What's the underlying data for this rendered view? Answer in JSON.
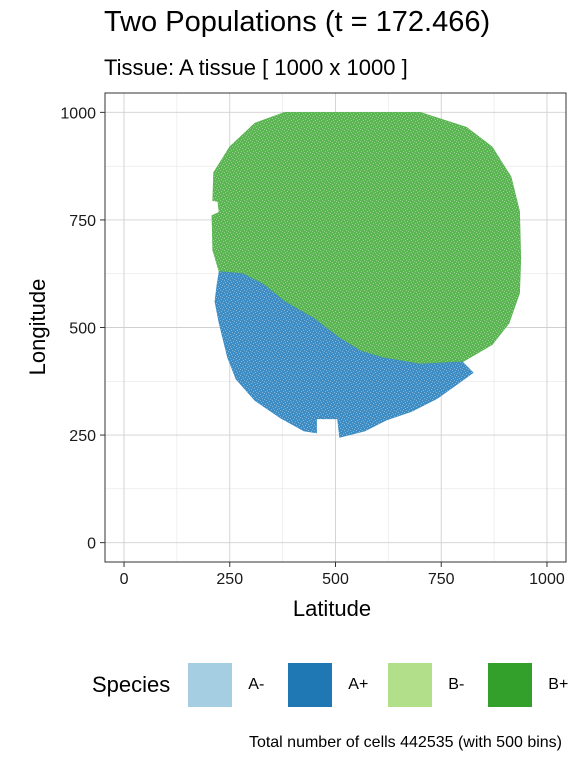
{
  "chart_data": {
    "type": "heatmap",
    "title": "Two Populations (t = 172.466)",
    "subtitle": "Tissue: A tissue [ 1000 x 1000 ]",
    "xlabel": "Latitude",
    "ylabel": "Longitude",
    "xlim": [
      -45,
      1045
    ],
    "ylim": [
      -45,
      1045
    ],
    "xticks": [
      0,
      250,
      500,
      750,
      1000
    ],
    "yticks": [
      0,
      250,
      500,
      750,
      1000
    ],
    "grid": true,
    "legend": {
      "title": "Species",
      "placement": "bottom",
      "entries": [
        {
          "label": "A-",
          "color": "#a6cee3"
        },
        {
          "label": "A+",
          "color": "#1f78b4"
        },
        {
          "label": "B-",
          "color": "#b2df8a"
        },
        {
          "label": "B+",
          "color": "#33a02c"
        }
      ]
    },
    "regions": [
      {
        "species": "B+",
        "color": "#5ab552",
        "polygon": [
          [
            225,
            630
          ],
          [
            210,
            680
          ],
          [
            208,
            760
          ],
          [
            225,
            768
          ],
          [
            222,
            793
          ],
          [
            210,
            795
          ],
          [
            212,
            860
          ],
          [
            250,
            920
          ],
          [
            310,
            975
          ],
          [
            380,
            1000
          ],
          [
            700,
            1000
          ],
          [
            810,
            965
          ],
          [
            870,
            920
          ],
          [
            915,
            850
          ],
          [
            935,
            770
          ],
          [
            938,
            660
          ],
          [
            935,
            580
          ],
          [
            910,
            510
          ],
          [
            870,
            460
          ],
          [
            800,
            420
          ],
          [
            700,
            415
          ],
          [
            610,
            430
          ],
          [
            560,
            445
          ],
          [
            510,
            475
          ],
          [
            450,
            520
          ],
          [
            380,
            560
          ],
          [
            330,
            600
          ],
          [
            280,
            625
          ]
        ]
      },
      {
        "species": "A+",
        "color": "#3d8cc4",
        "polygon": [
          [
            225,
            630
          ],
          [
            280,
            625
          ],
          [
            330,
            600
          ],
          [
            380,
            560
          ],
          [
            450,
            520
          ],
          [
            510,
            475
          ],
          [
            560,
            445
          ],
          [
            610,
            430
          ],
          [
            700,
            415
          ],
          [
            800,
            420
          ],
          [
            825,
            395
          ],
          [
            790,
            370
          ],
          [
            740,
            335
          ],
          [
            680,
            305
          ],
          [
            620,
            285
          ],
          [
            570,
            260
          ],
          [
            510,
            245
          ],
          [
            505,
            288
          ],
          [
            455,
            288
          ],
          [
            455,
            255
          ],
          [
            425,
            260
          ],
          [
            370,
            290
          ],
          [
            310,
            330
          ],
          [
            265,
            380
          ],
          [
            245,
            430
          ],
          [
            225,
            510
          ],
          [
            215,
            560
          ],
          [
            220,
            600
          ]
        ]
      }
    ],
    "caption": "Total number of cells 442535 (with 500 bins)"
  }
}
